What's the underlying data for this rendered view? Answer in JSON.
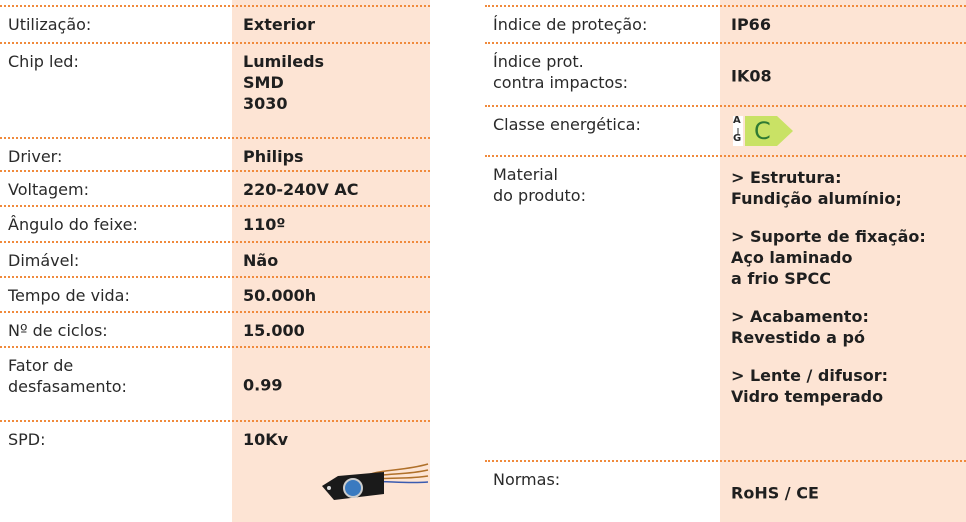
{
  "left": {
    "rows": [
      {
        "label": [
          "Utilização:"
        ],
        "value": [
          "Exterior"
        ]
      },
      {
        "label": [
          "Chip led:"
        ],
        "value": [
          "Lumileds",
          "SMD",
          "3030"
        ]
      },
      {
        "label": [
          "Driver:"
        ],
        "value": [
          "Philips"
        ]
      },
      {
        "label": [
          "Voltagem:"
        ],
        "value": [
          "220-240V AC"
        ]
      },
      {
        "label": [
          "Ângulo do feixe:"
        ],
        "value": [
          "110º"
        ]
      },
      {
        "label": [
          "Dimável:"
        ],
        "value": [
          "Não"
        ]
      },
      {
        "label": [
          "Tempo de vida:"
        ],
        "value": [
          "50.000h"
        ]
      },
      {
        "label": [
          "Nº de ciclos:"
        ],
        "value": [
          "15.000"
        ]
      },
      {
        "label": [
          "Fator de",
          "desfasamento:"
        ],
        "value": [
          "0.99"
        ]
      },
      {
        "label": [
          "SPD:"
        ],
        "value": [
          "10Kv"
        ]
      }
    ]
  },
  "right": {
    "rows": [
      {
        "label": [
          "Índice de proteção:"
        ],
        "value": [
          "IP66"
        ]
      },
      {
        "label": [
          "Índice prot.",
          "contra impactos:"
        ],
        "value": [
          "IK08"
        ]
      },
      {
        "label": [
          "Classe energética:"
        ],
        "energy": {
          "top": "A",
          "bottom": "G",
          "class": "C"
        }
      },
      {
        "label": [
          "Material",
          "do produto:"
        ],
        "items": [
          [
            "> Estrutura:",
            "Fundição alumínio;"
          ],
          [
            "> Suporte de fixação:",
            "Aço laminado",
            "a frio SPCC"
          ],
          [
            "> Acabamento:",
            "Revestido a pó"
          ],
          [
            "> Lente / difusor:",
            "Vidro temperado"
          ]
        ]
      },
      {
        "label": [
          "Normas:"
        ],
        "value": [
          "RoHS / CE"
        ]
      }
    ]
  }
}
